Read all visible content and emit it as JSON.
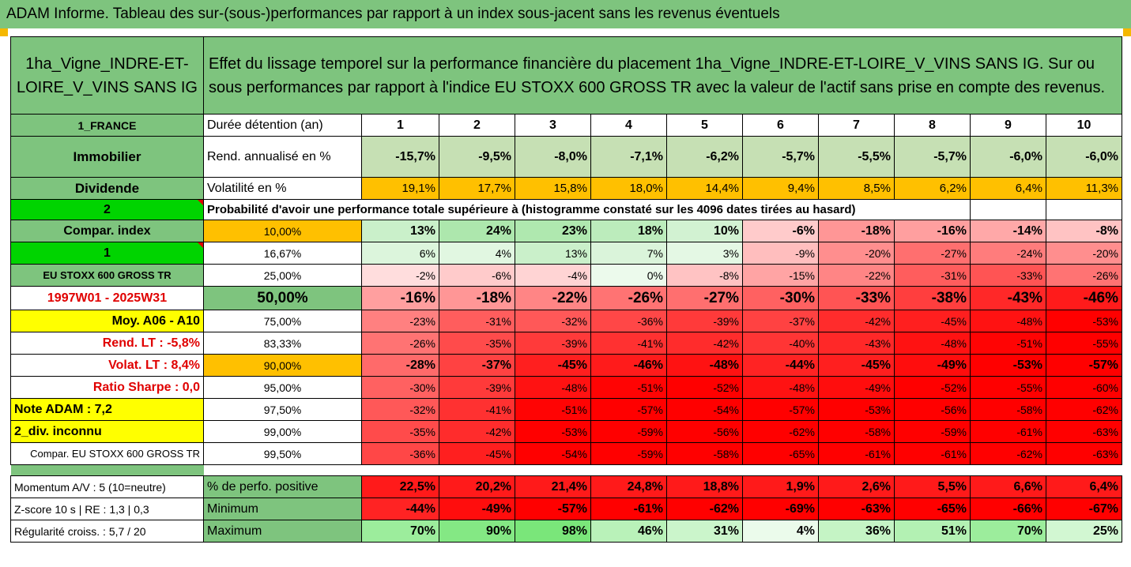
{
  "banner": "ADAM Informe. Tableau des sur-(sous-)performances par rapport à un index sous-jacent sans les revenus éventuels",
  "header": {
    "asset": "1ha_Vigne_INDRE-ET-LOIRE_V_VINS SANS IG",
    "description": "Effet du lissage temporel sur la performance financière du placement 1ha_Vigne_INDRE-ET-LOIRE_V_VINS SANS IG. Sur ou sous performances par rapport à l'indice EU STOXX 600 GROSS TR avec la valeur de l'actif sans prise en compte des revenus."
  },
  "years": [
    "1",
    "2",
    "3",
    "4",
    "5",
    "6",
    "7",
    "8",
    "9",
    "10"
  ],
  "row_duree": {
    "left": "1_FRANCE",
    "label": "Durée détention (an)"
  },
  "row_rend": {
    "left": "Immobilier",
    "label": "Rend. annualisé en %",
    "values": [
      "-15,7%",
      "-9,5%",
      "-8,0%",
      "-7,1%",
      "-6,2%",
      "-5,7%",
      "-5,5%",
      "-5,7%",
      "-6,0%",
      "-6,0%"
    ]
  },
  "row_vol": {
    "left": "Dividende",
    "label": "Volatilité en %",
    "values": [
      "19,1%",
      "17,7%",
      "15,8%",
      "18,0%",
      "14,4%",
      "9,4%",
      "8,5%",
      "6,2%",
      "6,4%",
      "11,3%"
    ]
  },
  "row_prob": {
    "left": "2",
    "label": "Probabilité d'avoir une performance totale supérieure à (histogramme constaté sur les 4096 dates tirées au hasard)"
  },
  "quantile_rows": [
    {
      "left": "Compar. index",
      "pct": "10,00%",
      "values": [
        "13%",
        "24%",
        "23%",
        "18%",
        "10%",
        "-6%",
        "-18%",
        "-16%",
        "-14%",
        "-8%"
      ]
    },
    {
      "left": "1",
      "pct": "16,67%",
      "values": [
        "6%",
        "4%",
        "13%",
        "7%",
        "3%",
        "-9%",
        "-20%",
        "-27%",
        "-24%",
        "-20%"
      ]
    },
    {
      "left": "EU STOXX 600 GROSS TR",
      "pct": "25,00%",
      "values": [
        "-2%",
        "-6%",
        "-4%",
        "0%",
        "-8%",
        "-15%",
        "-22%",
        "-31%",
        "-33%",
        "-26%"
      ]
    },
    {
      "left": "1997W01 - 2025W31",
      "pct": "50,00%",
      "values": [
        "-16%",
        "-18%",
        "-22%",
        "-26%",
        "-27%",
        "-30%",
        "-33%",
        "-38%",
        "-43%",
        "-46%"
      ]
    },
    {
      "left": "Moy. A06 - A10",
      "pct": "75,00%",
      "values": [
        "-23%",
        "-31%",
        "-32%",
        "-36%",
        "-39%",
        "-37%",
        "-42%",
        "-45%",
        "-48%",
        "-53%"
      ]
    },
    {
      "left": "Rend. LT :   -5,8%",
      "pct": "83,33%",
      "values": [
        "-26%",
        "-35%",
        "-39%",
        "-41%",
        "-42%",
        "-40%",
        "-43%",
        "-48%",
        "-51%",
        "-55%"
      ]
    },
    {
      "left": "Volat. LT :   8,4%",
      "pct": "90,00%",
      "values": [
        "-28%",
        "-37%",
        "-45%",
        "-46%",
        "-48%",
        "-44%",
        "-45%",
        "-49%",
        "-53%",
        "-57%"
      ]
    },
    {
      "left": "Ratio Sharpe :   0,0",
      "pct": "95,00%",
      "values": [
        "-30%",
        "-39%",
        "-48%",
        "-51%",
        "-52%",
        "-48%",
        "-49%",
        "-52%",
        "-55%",
        "-60%"
      ]
    },
    {
      "left": "Note ADAM : 7,2",
      "pct": "97,50%",
      "values": [
        "-32%",
        "-41%",
        "-51%",
        "-57%",
        "-54%",
        "-57%",
        "-53%",
        "-56%",
        "-58%",
        "-62%"
      ]
    },
    {
      "left": "2_div. inconnu",
      "pct": "99,00%",
      "values": [
        "-35%",
        "-42%",
        "-53%",
        "-59%",
        "-56%",
        "-62%",
        "-58%",
        "-59%",
        "-61%",
        "-63%"
      ]
    },
    {
      "left": "Compar. EU STOXX 600 GROSS TR",
      "pct": "99,50%",
      "values": [
        "-36%",
        "-45%",
        "-54%",
        "-59%",
        "-58%",
        "-65%",
        "-61%",
        "-61%",
        "-62%",
        "-63%"
      ]
    }
  ],
  "bottom_rows": [
    {
      "left": "Momentum A/V : 5 (10=neutre)",
      "label": "% de perfo. positive",
      "values": [
        "22,5%",
        "20,2%",
        "21,4%",
        "24,8%",
        "18,8%",
        "1,9%",
        "2,6%",
        "5,5%",
        "6,6%",
        "6,4%"
      ]
    },
    {
      "left": "Z-score 10 s  | RE : 1,3 | 0,3",
      "label": "Minimum",
      "values": [
        "-44%",
        "-49%",
        "-57%",
        "-61%",
        "-62%",
        "-69%",
        "-63%",
        "-65%",
        "-66%",
        "-67%"
      ]
    },
    {
      "left": "Régularité croiss. : 5,7 / 20",
      "label": "Maximum",
      "values": [
        "70%",
        "90%",
        "98%",
        "46%",
        "31%",
        "4%",
        "36%",
        "51%",
        "70%",
        "25%"
      ]
    }
  ]
}
